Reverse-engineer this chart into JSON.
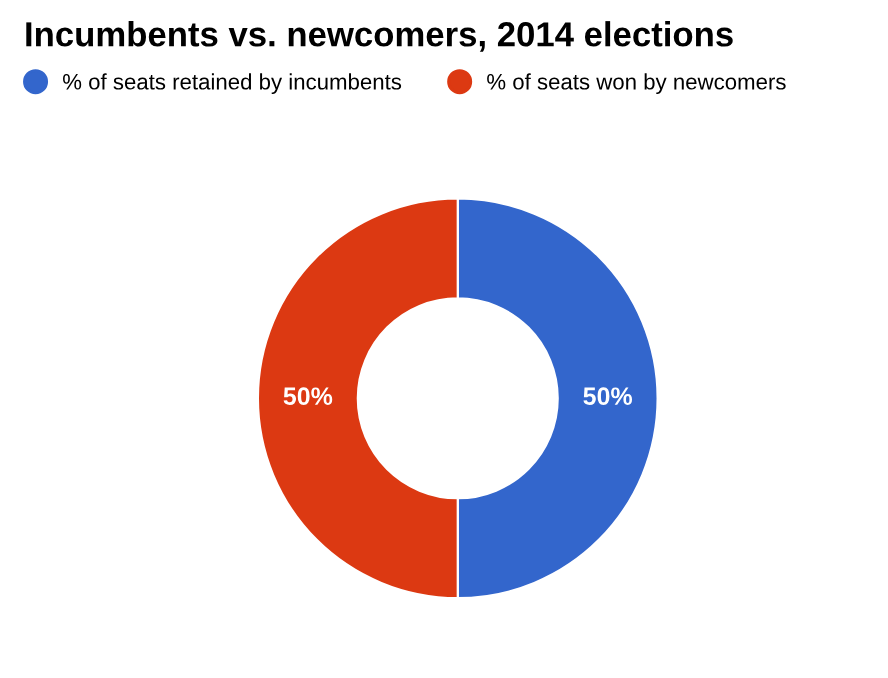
{
  "chart_data": {
    "type": "donut",
    "title": "Incumbents vs. newcomers, 2014 elections",
    "categories": [
      "% of seats retained by incumbents",
      "% of seats won by newcomers"
    ],
    "values": [
      50,
      50
    ],
    "colors": [
      "#3366cc",
      "#dc3912"
    ],
    "value_labels": [
      "50%",
      "50%"
    ],
    "legend": "top"
  }
}
